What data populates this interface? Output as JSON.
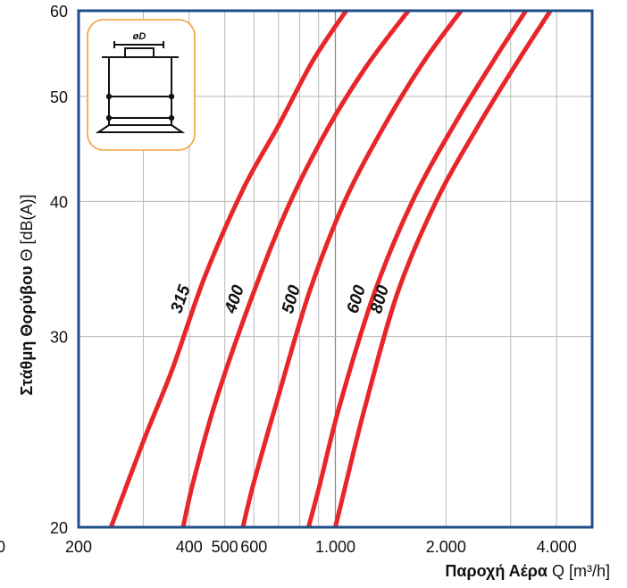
{
  "chart_data": {
    "type": "line",
    "x_scale": "log",
    "y_scale": "log",
    "xlim": [
      200,
      5000
    ],
    "ylim": [
      20,
      60
    ],
    "x_ticks": [
      {
        "value": 200,
        "label": "200"
      },
      {
        "value": 400,
        "label": "400"
      },
      {
        "value": 500,
        "label": "500"
      },
      {
        "value": 600,
        "label": "600"
      },
      {
        "value": 1000,
        "label": "1.000"
      },
      {
        "value": 2000,
        "label": "2.000"
      },
      {
        "value": 4000,
        "label": "4.000"
      }
    ],
    "edge_tick_label": "0",
    "y_ticks": [
      {
        "value": 20,
        "label": "20"
      },
      {
        "value": 30,
        "label": "30"
      },
      {
        "value": 40,
        "label": "40"
      },
      {
        "value": 50,
        "label": "50"
      },
      {
        "value": 60,
        "label": "60"
      }
    ],
    "grid": true,
    "xlabel": {
      "bold": "Παροχή Αέρα",
      "normal": " Q [m³/h]"
    },
    "ylabel": {
      "bold": "Στάθμη Θορύβου",
      "normal": " Θ [dB(A)]"
    },
    "line_color": "#e8262a",
    "frame_color": "#1f4e8c",
    "series": [
      {
        "name": "315",
        "points": [
          [
            245,
            20
          ],
          [
            300,
            24
          ],
          [
            360,
            28
          ],
          [
            440,
            34
          ],
          [
            560,
            41
          ],
          [
            700,
            47
          ],
          [
            870,
            54
          ],
          [
            1070,
            60
          ]
        ]
      },
      {
        "name": "400",
        "points": [
          [
            385,
            20
          ],
          [
            410,
            22
          ],
          [
            470,
            26
          ],
          [
            580,
            32
          ],
          [
            730,
            39
          ],
          [
            930,
            46
          ],
          [
            1200,
            53
          ],
          [
            1580,
            60
          ]
        ]
      },
      {
        "name": "500",
        "points": [
          [
            560,
            20
          ],
          [
            600,
            22
          ],
          [
            690,
            26
          ],
          [
            850,
            33
          ],
          [
            1060,
            40
          ],
          [
            1360,
            47
          ],
          [
            1750,
            54
          ],
          [
            2200,
            60
          ]
        ]
      },
      {
        "name": "600",
        "points": [
          [
            845,
            20
          ],
          [
            910,
            22
          ],
          [
            1030,
            26
          ],
          [
            1280,
            33
          ],
          [
            1620,
            40
          ],
          [
            2100,
            47
          ],
          [
            2700,
            54
          ],
          [
            3300,
            60
          ]
        ]
      },
      {
        "name": "800",
        "points": [
          [
            1000,
            20
          ],
          [
            1070,
            22
          ],
          [
            1210,
            26
          ],
          [
            1480,
            33
          ],
          [
            1880,
            40
          ],
          [
            2450,
            47
          ],
          [
            3150,
            54
          ],
          [
            3850,
            60
          ]
        ]
      }
    ]
  },
  "inset": {
    "label": "øD"
  }
}
